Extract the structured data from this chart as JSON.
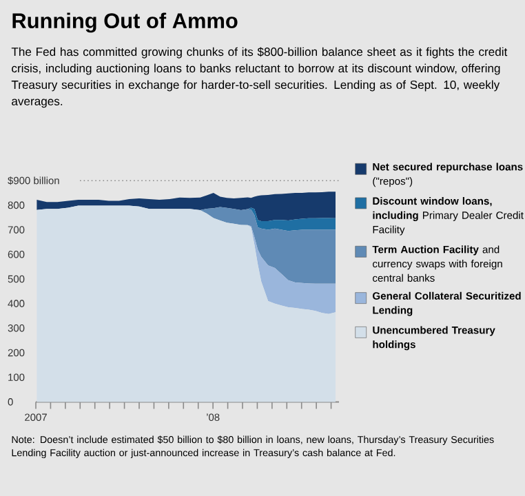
{
  "chart_data": {
    "type": "area",
    "stacked": true,
    "title": "Running Out of Ammo",
    "subtitle": "The Fed has committed growing chunks of its $800-billion balance sheet as it fights the credit crisis, including auctioning loans to banks reluctant to borrow at its discount window, offering Treasury securities in exchange for harder-to-sell securities. Lending as of Sept. 10, weekly averages.",
    "annotations": [
      "Note: Doesn’t include estimated $50 billion to $80 billion in loans, new loans, Thursday’s Treasury Securities Lending Facility auction or just-announced increase in Treasury’s cash balance at Fed."
    ],
    "x": [
      "2007-01-03",
      "2007-01-24",
      "2007-02-14",
      "2007-03-07",
      "2007-03-28",
      "2007-04-18",
      "2007-05-09",
      "2007-05-30",
      "2007-06-20",
      "2007-07-11",
      "2007-08-01",
      "2007-08-22",
      "2007-09-12",
      "2007-10-03",
      "2007-10-24",
      "2007-11-14",
      "2007-12-05",
      "2007-12-19",
      "2008-01-02",
      "2008-01-16",
      "2008-01-30",
      "2008-02-13",
      "2008-02-27",
      "2008-03-12",
      "2008-03-19",
      "2008-03-26",
      "2008-04-02",
      "2008-04-09",
      "2008-04-23",
      "2008-05-07",
      "2008-05-21",
      "2008-06-04",
      "2008-06-18",
      "2008-07-02",
      "2008-07-16",
      "2008-07-30",
      "2008-08-13",
      "2008-08-27",
      "2008-09-10"
    ],
    "xlim": [
      "2007-01-01",
      "2008-09-17"
    ],
    "xticks": [
      {
        "value": "2007-01",
        "label": "2007"
      },
      {
        "value": "2007-02",
        "label": null
      },
      {
        "value": "2007-03",
        "label": null
      },
      {
        "value": "2007-04",
        "label": null
      },
      {
        "value": "2007-05",
        "label": null
      },
      {
        "value": "2007-06",
        "label": null
      },
      {
        "value": "2007-07",
        "label": null
      },
      {
        "value": "2007-08",
        "label": null
      },
      {
        "value": "2007-09",
        "label": null
      },
      {
        "value": "2007-10",
        "label": null
      },
      {
        "value": "2007-11",
        "label": null
      },
      {
        "value": "2007-12",
        "label": null
      },
      {
        "value": "2008-01",
        "label": "’08"
      },
      {
        "value": "2008-02",
        "label": null
      },
      {
        "value": "2008-03",
        "label": null
      },
      {
        "value": "2008-04",
        "label": null
      },
      {
        "value": "2008-05",
        "label": null
      },
      {
        "value": "2008-06",
        "label": null
      },
      {
        "value": "2008-07",
        "label": null
      },
      {
        "value": "2008-08",
        "label": null
      },
      {
        "value": "2008-09",
        "label": null
      }
    ],
    "ylim": [
      0,
      900
    ],
    "yticks": [
      0,
      100,
      200,
      300,
      400,
      500,
      600,
      700,
      800,
      {
        "value": 900,
        "label": "$900 billion"
      }
    ],
    "ref_lines": [
      {
        "axis": "y",
        "value": 900,
        "color": "#8a8a8a",
        "line_style": "dotted"
      }
    ],
    "legend": "right",
    "series": [
      {
        "name": "**Unencumbered Treasury holdings**",
        "color": "#d3dfe9",
        "values": [
          781,
          785,
          785,
          790,
          798,
          798,
          798,
          798,
          798,
          798,
          795,
          785,
          785,
          785,
          785,
          785,
          780,
          766,
          748,
          738,
          729,
          725,
          720,
          719,
          710,
          640,
          560,
          490,
          410,
          400,
          392,
          385,
          382,
          378,
          375,
          370,
          362,
          358,
          365
        ]
      },
      {
        "name": "**General Collateral Securitized Lending**",
        "color": "#9ab6dc",
        "values": [
          0,
          0,
          0,
          0,
          0,
          0,
          0,
          0,
          0,
          0,
          0,
          0,
          0,
          0,
          0,
          0,
          0,
          0,
          0,
          0,
          0,
          0,
          0,
          0,
          5,
          30,
          60,
          100,
          145,
          145,
          128,
          110,
          104,
          106,
          107,
          111,
          119,
          123,
          116
        ]
      },
      {
        "name": "**Term Auction Facility** and currency swaps with foreign central banks",
        "color": "#5f8ab5",
        "values": [
          0,
          0,
          0,
          0,
          0,
          0,
          0,
          0,
          0,
          0,
          0,
          0,
          0,
          0,
          0,
          0,
          0,
          20,
          40,
          55,
          60,
          60,
          60,
          65,
          67,
          90,
          90,
          115,
          145,
          160,
          180,
          200,
          212,
          216,
          218,
          219,
          219,
          219,
          219
        ]
      },
      {
        "name": "**Discount window loans, including** Primary Dealer Credit Facility",
        "color": "#1f6fa3",
        "values": [
          0,
          0,
          0,
          0,
          0,
          0,
          0,
          0,
          0,
          0,
          0,
          0,
          0,
          0,
          0,
          0,
          0,
          0,
          0,
          0,
          0,
          0,
          0,
          0,
          8,
          25,
          30,
          30,
          35,
          35,
          40,
          43,
          44,
          45,
          47,
          47,
          48,
          48,
          47
        ]
      },
      {
        "name": "**Net secured repurchase loans** (\"repos\")",
        "color": "#163a6c",
        "values": [
          41,
          28,
          28,
          28,
          24,
          24,
          24,
          20,
          20,
          27,
          33,
          40,
          37,
          40,
          46,
          45,
          51,
          54,
          62,
          42,
          41,
          43,
          50,
          48,
          40,
          50,
          98,
          105,
          107,
          105,
          106,
          110,
          108,
          105,
          105,
          105,
          105,
          107,
          108
        ]
      }
    ]
  }
}
